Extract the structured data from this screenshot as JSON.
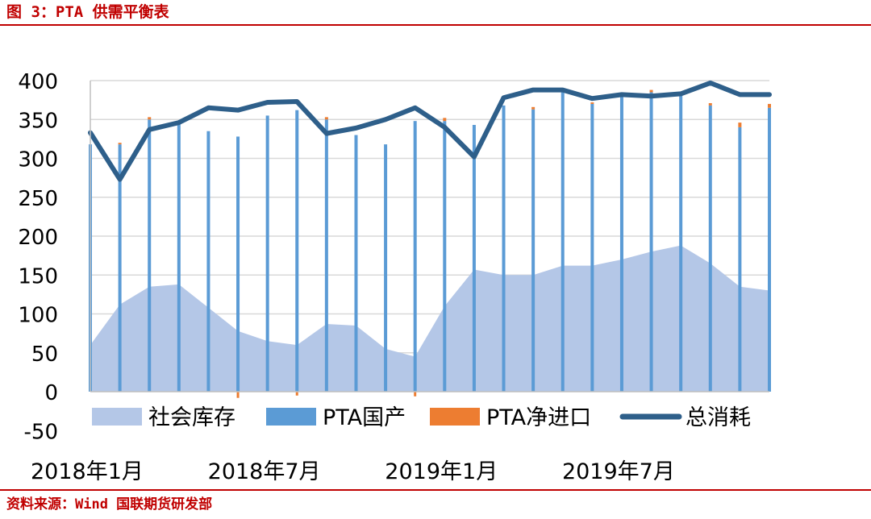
{
  "header": {
    "title": "图 3：PTA 供需平衡表"
  },
  "footer": {
    "source": "资料来源：Wind 国联期货研发部"
  },
  "chart_data": {
    "type": "bar",
    "ylim": [
      -50,
      400
    ],
    "yticks": [
      400,
      350,
      300,
      250,
      200,
      150,
      100,
      50,
      0,
      -50
    ],
    "x": [
      "2018-01",
      "2018-02",
      "2018-03",
      "2018-04",
      "2018-05",
      "2018-06",
      "2018-07",
      "2018-08",
      "2018-09",
      "2018-10",
      "2018-11",
      "2018-12",
      "2019-01",
      "2019-02",
      "2019-03",
      "2019-04",
      "2019-05",
      "2019-06",
      "2019-07",
      "2019-08",
      "2019-09",
      "2019-10",
      "2019-11",
      "2019-12"
    ],
    "xtick_labels": [
      {
        "index": 0,
        "label": "2018年1月"
      },
      {
        "index": 6,
        "label": "2018年7月"
      },
      {
        "index": 12,
        "label": "2019年1月"
      },
      {
        "index": 18,
        "label": "2019年7月"
      }
    ],
    "series": [
      {
        "name": "社会库存",
        "type": "area",
        "color": "#b4c7e7",
        "values": [
          60,
          112,
          135,
          138,
          108,
          78,
          65,
          60,
          87,
          85,
          55,
          45,
          110,
          157,
          150,
          150,
          162,
          162,
          170,
          180,
          188,
          165,
          135,
          130
        ]
      },
      {
        "name": "PTA国产",
        "type": "bar",
        "color": "#5b9bd5",
        "values": [
          318,
          318,
          350,
          345,
          335,
          328,
          355,
          362,
          350,
          330,
          318,
          348,
          348,
          343,
          368,
          363,
          385,
          370,
          380,
          385,
          385,
          368,
          340,
          365
        ]
      },
      {
        "name": "PTA净进口",
        "type": "bar",
        "color": "#ed7d31",
        "values": [
          0,
          2,
          3,
          0,
          0,
          -8,
          0,
          -5,
          3,
          0,
          0,
          -6,
          4,
          0,
          0,
          3,
          0,
          2,
          0,
          3,
          0,
          3,
          6,
          5
        ]
      },
      {
        "name": "总消耗",
        "type": "line",
        "color": "#2e5f8a",
        "values": [
          333,
          273,
          337,
          346,
          365,
          362,
          372,
          373,
          332,
          339,
          350,
          365,
          340,
          302,
          378,
          388,
          388,
          377,
          382,
          380,
          383,
          397,
          382,
          382
        ]
      }
    ]
  }
}
